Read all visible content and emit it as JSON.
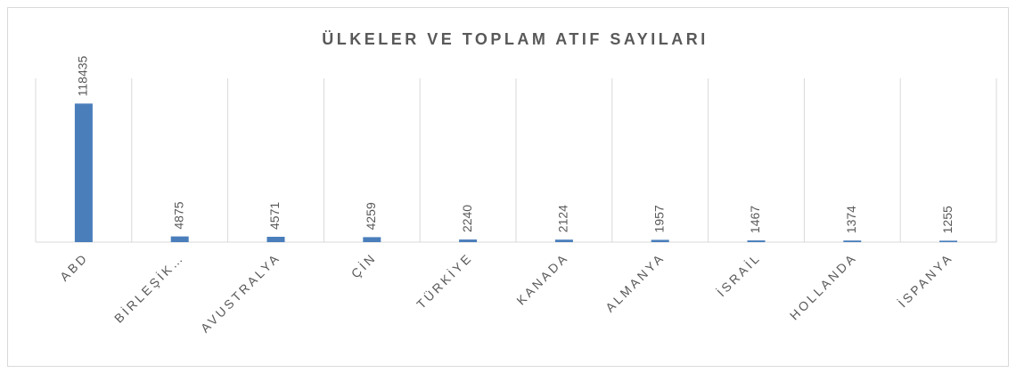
{
  "chart_data": {
    "type": "bar",
    "title": "ÜLKELER VE TOPLAM ATIF SAYILARI",
    "categories": [
      "ABD",
      "BİRLEŞİK…",
      "AVUSTRALYA",
      "ÇİN",
      "TÜRKİYE",
      "KANADA",
      "ALMANYA",
      "İSRAİL",
      "HOLLANDA",
      "İSPANYA"
    ],
    "values": [
      118435,
      4875,
      4571,
      4259,
      2240,
      2124,
      1957,
      1467,
      1374,
      1255
    ],
    "color": "#4a7ebb",
    "ylim": [
      0,
      140000
    ],
    "grid": true
  }
}
